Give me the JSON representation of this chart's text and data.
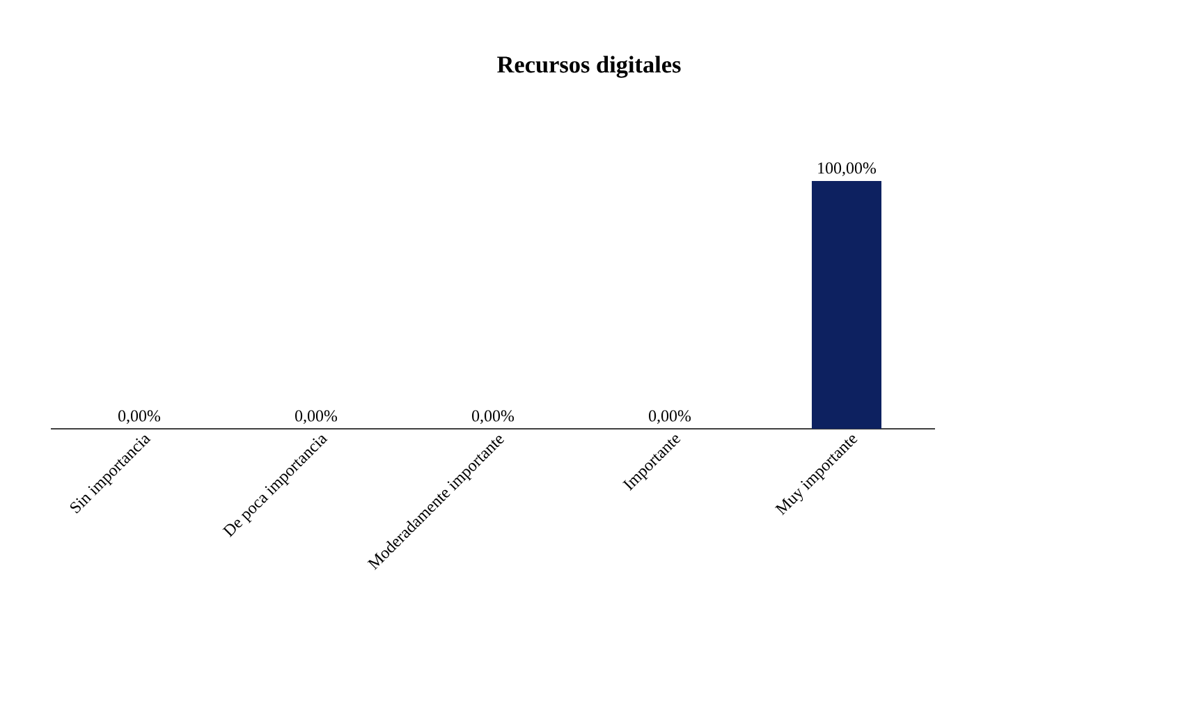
{
  "chart_data": {
    "type": "bar",
    "title": "Recursos digitales",
    "categories": [
      "Sin importancia",
      "De poca importancia",
      "Moderadamente importante",
      "Importante",
      "Muy importante"
    ],
    "values": [
      0,
      0,
      0,
      0,
      100
    ],
    "value_labels": [
      "0,00%",
      "0,00%",
      "0,00%",
      "0,00%",
      "100,00%"
    ],
    "color": "#0d2160"
  }
}
